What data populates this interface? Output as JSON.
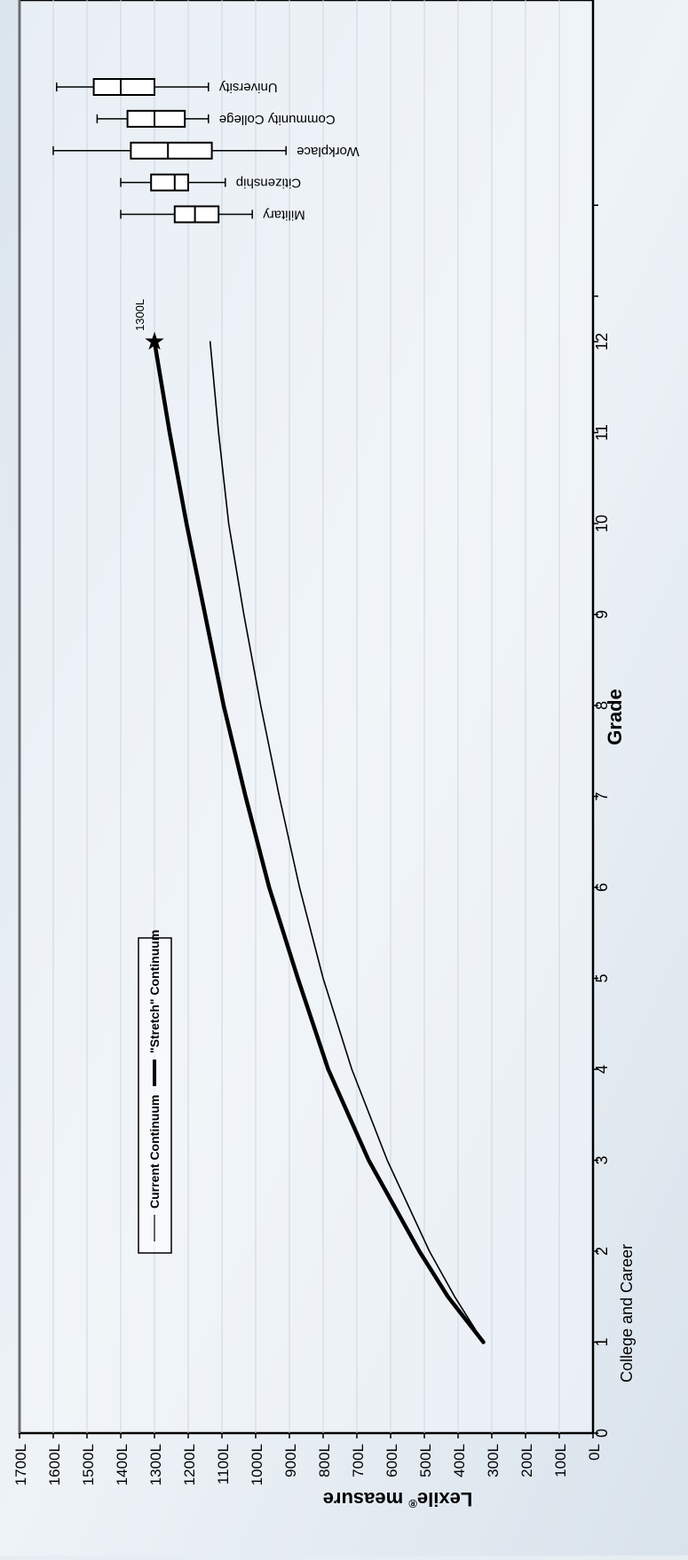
{
  "chart_data": {
    "type": "line",
    "orientation": "rotated-90-clockwise",
    "xlabel": "Grade",
    "ylabel_main": "Lexile",
    "ylabel_sup": "®",
    "ylabel_rest": " measure",
    "x_ticks": [
      "0",
      "1",
      "2",
      "3",
      "4",
      "5",
      "6",
      "7",
      "8",
      "9",
      "10",
      "11",
      "12"
    ],
    "x_extra_category": "College and Career",
    "xlim": [
      0,
      14.2
    ],
    "ylim": [
      0,
      1700
    ],
    "y_ticks": [
      "0L",
      "100L",
      "200L",
      "300L",
      "400L",
      "500L",
      "600L",
      "700L",
      "800L",
      "900L",
      "1000L",
      "1100L",
      "1200L",
      "1300L",
      "1400L",
      "1500L",
      "1600L",
      "1700L"
    ],
    "grid": "horizontal-lines-at-each-100L",
    "legend_position": "top-left",
    "series": [
      {
        "name": "Current Continuum",
        "style": "thin",
        "x": [
          1,
          1.5,
          2,
          3,
          4,
          5,
          6,
          7,
          8,
          9,
          10,
          11,
          12
        ],
        "y": [
          325,
          410,
          485,
          610,
          715,
          800,
          870,
          930,
          985,
          1035,
          1080,
          1110,
          1135
        ]
      },
      {
        "name": "\"Stretch\" Continuum",
        "style": "thick",
        "x": [
          1,
          1.5,
          2,
          3,
          4,
          5,
          6,
          7,
          8,
          9,
          10,
          11,
          12
        ],
        "y": [
          325,
          430,
          515,
          665,
          785,
          875,
          960,
          1030,
          1095,
          1150,
          1205,
          1255,
          1300
        ]
      }
    ],
    "endpoint_marker": {
      "symbol": "★",
      "x": 12,
      "y": 1300,
      "label": "1300L"
    },
    "boxplots": [
      {
        "name": "Military",
        "x": 13.4,
        "min": 1010,
        "q1": 1110,
        "median": 1180,
        "q3": 1240,
        "max": 1400
      },
      {
        "name": "Citizenship",
        "x": 13.75,
        "min": 1090,
        "q1": 1200,
        "median": 1240,
        "q3": 1310,
        "max": 1400
      },
      {
        "name": "Workplace",
        "x": 14.1,
        "min": 910,
        "q1": 1130,
        "median": 1260,
        "q3": 1370,
        "max": 1600
      },
      {
        "name": "Community College",
        "x": 14.45,
        "min": 1140,
        "q1": 1210,
        "median": 1300,
        "q3": 1380,
        "max": 1470
      },
      {
        "name": "University",
        "x": 14.8,
        "min": 1140,
        "q1": 1300,
        "median": 1400,
        "q3": 1480,
        "max": 1590
      }
    ]
  }
}
